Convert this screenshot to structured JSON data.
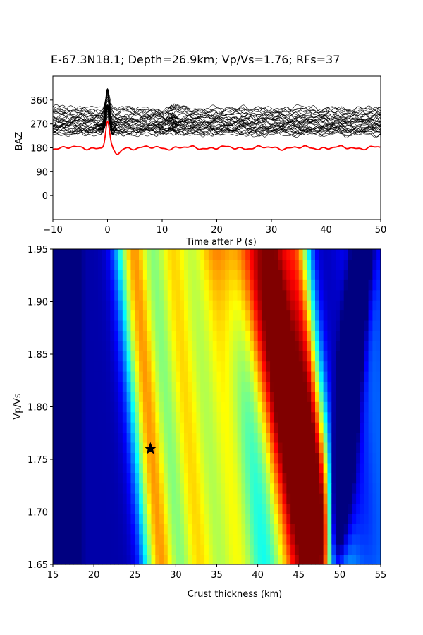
{
  "title": "E-67.3N18.1; Depth=26.9km; Vp/Vs=1.76; RFs=37",
  "chart_data": [
    {
      "type": "line",
      "name": "waveforms",
      "xlabel": "Time after P (s)",
      "ylabel": "BAZ",
      "xlim": [
        -10,
        50
      ],
      "ylim": [
        -90,
        450
      ],
      "xticks": [
        "−10",
        "0",
        "10",
        "20",
        "30",
        "40",
        "50"
      ],
      "xtick_values": [
        -10,
        0,
        10,
        20,
        30,
        40,
        50
      ],
      "yticks": [
        "0",
        "90",
        "180",
        "270",
        "360"
      ],
      "ytick_values": [
        0,
        90,
        180,
        270,
        360
      ],
      "trace_count": 37,
      "trace_baz_range": [
        230,
        330
      ],
      "stack_baz": 180,
      "colors": {
        "traces": "#000000",
        "stack": "#ff0000"
      }
    },
    {
      "type": "heatmap",
      "name": "hk-stack",
      "xlabel": "Crust thickness (km)",
      "ylabel": "Vp/Vs",
      "xlim": [
        15,
        55
      ],
      "ylim": [
        1.65,
        1.95
      ],
      "xticks": [
        "15",
        "20",
        "25",
        "30",
        "35",
        "40",
        "45",
        "50",
        "55"
      ],
      "xtick_values": [
        15,
        20,
        25,
        30,
        35,
        40,
        45,
        50,
        55
      ],
      "yticks": [
        "1.65",
        "1.70",
        "1.75",
        "1.80",
        "1.85",
        "1.90",
        "1.95"
      ],
      "ytick_values": [
        1.65,
        1.7,
        1.75,
        1.8,
        1.85,
        1.9,
        1.95
      ],
      "colormap": "jet",
      "best": {
        "h": 26.9,
        "k": 1.76
      }
    }
  ]
}
